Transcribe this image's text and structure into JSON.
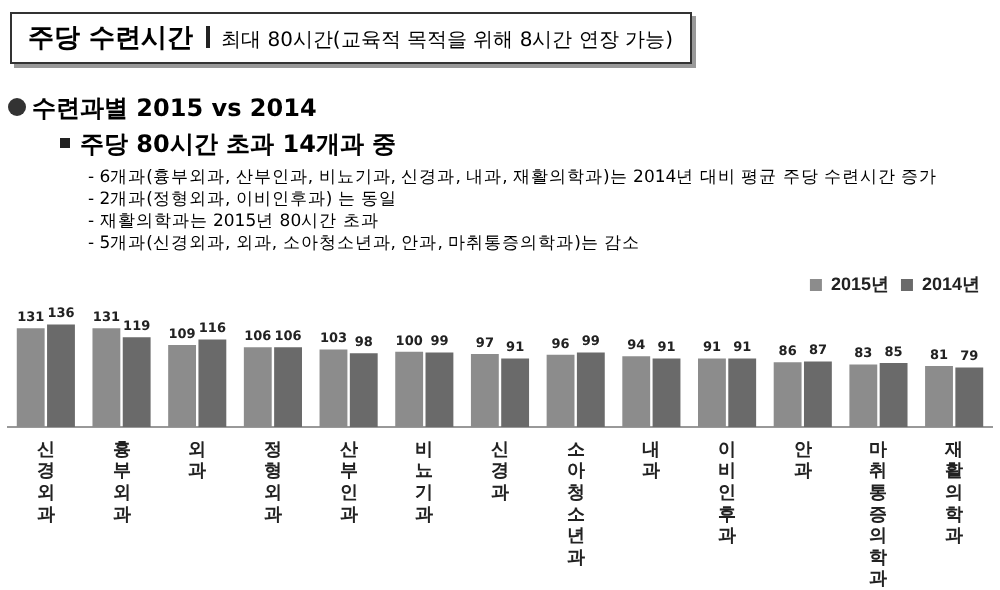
{
  "chart_data": {
    "type": "bar",
    "title": "주당 수련시간",
    "subtitle": "최대 80시간(교육적 목적을 위해 8시간 연장 가능)",
    "annotations": [
      "수련과별  2015 vs 2014",
      "주당 80시간 초과 14개과 중",
      "- 6개과(흉부외과, 산부인과, 비뇨기과, 신경과, 내과, 재활의학과)는 2014년 대비 평균 주당 수련시간 증가",
      "- 2개과(정형외과, 이비인후과) 는 동일",
      "-  재활의학과는 2015년 80시간 초과",
      "- 5개과(신경외과,  외과, 소아청소년과, 안과, 마취통증의학과)는 감소"
    ],
    "categories": [
      "신경외과",
      "흉부외과",
      "외과",
      "정형외과",
      "산부인과",
      "비뇨기과",
      "신경과",
      "소아청소년과",
      "내과",
      "이비인후과",
      "안과",
      "마취통증의학과",
      "재활의학과"
    ],
    "series": [
      {
        "name": "2015년",
        "color": "#8c8c8c",
        "values": [
          131,
          131,
          109,
          106,
          103,
          100,
          97,
          96,
          94,
          91,
          86,
          83,
          81
        ]
      },
      {
        "name": "2014년",
        "color": "#6a6a6a",
        "values": [
          136,
          119,
          116,
          106,
          98,
          99,
          91,
          99,
          91,
          91,
          87,
          85,
          79
        ]
      }
    ],
    "data_labels": true,
    "legend": "top right",
    "grid": false
  }
}
